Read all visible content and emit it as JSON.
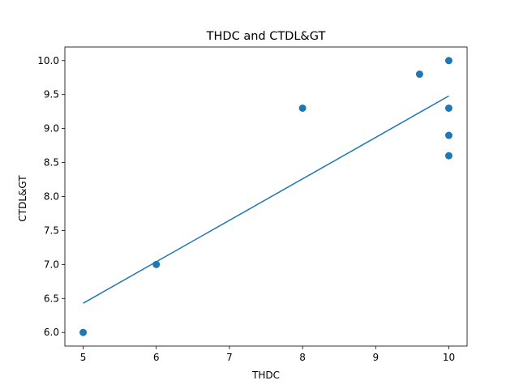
{
  "chart_data": {
    "type": "scatter",
    "title": "THDC and CTDL&GT",
    "xlabel": "THDC",
    "ylabel": "CTDL&GT",
    "xlim": [
      4.75,
      10.25
    ],
    "ylim": [
      5.8,
      10.2
    ],
    "xticks": [
      5,
      6,
      7,
      8,
      9,
      10
    ],
    "yticks": [
      6.0,
      6.5,
      7.0,
      7.5,
      8.0,
      8.5,
      9.0,
      9.5,
      10.0
    ],
    "xtick_labels": [
      "5",
      "6",
      "7",
      "8",
      "9",
      "10"
    ],
    "ytick_labels": [
      "6.0",
      "6.5",
      "7.0",
      "7.5",
      "8.0",
      "8.5",
      "9.0",
      "9.5",
      "10.0"
    ],
    "grid": false,
    "series": [
      {
        "type": "scatter",
        "color": "#1f77b4",
        "points": [
          {
            "x": 5,
            "y": 6.0
          },
          {
            "x": 6,
            "y": 7.0
          },
          {
            "x": 8,
            "y": 9.3
          },
          {
            "x": 9.6,
            "y": 9.8
          },
          {
            "x": 10,
            "y": 10.0
          },
          {
            "x": 10,
            "y": 9.3
          },
          {
            "x": 10,
            "y": 8.9
          },
          {
            "x": 10,
            "y": 8.6
          }
        ]
      },
      {
        "type": "line",
        "color": "#1f77b4",
        "points": [
          {
            "x": 5,
            "y": 6.43
          },
          {
            "x": 10,
            "y": 9.48
          }
        ]
      }
    ]
  }
}
